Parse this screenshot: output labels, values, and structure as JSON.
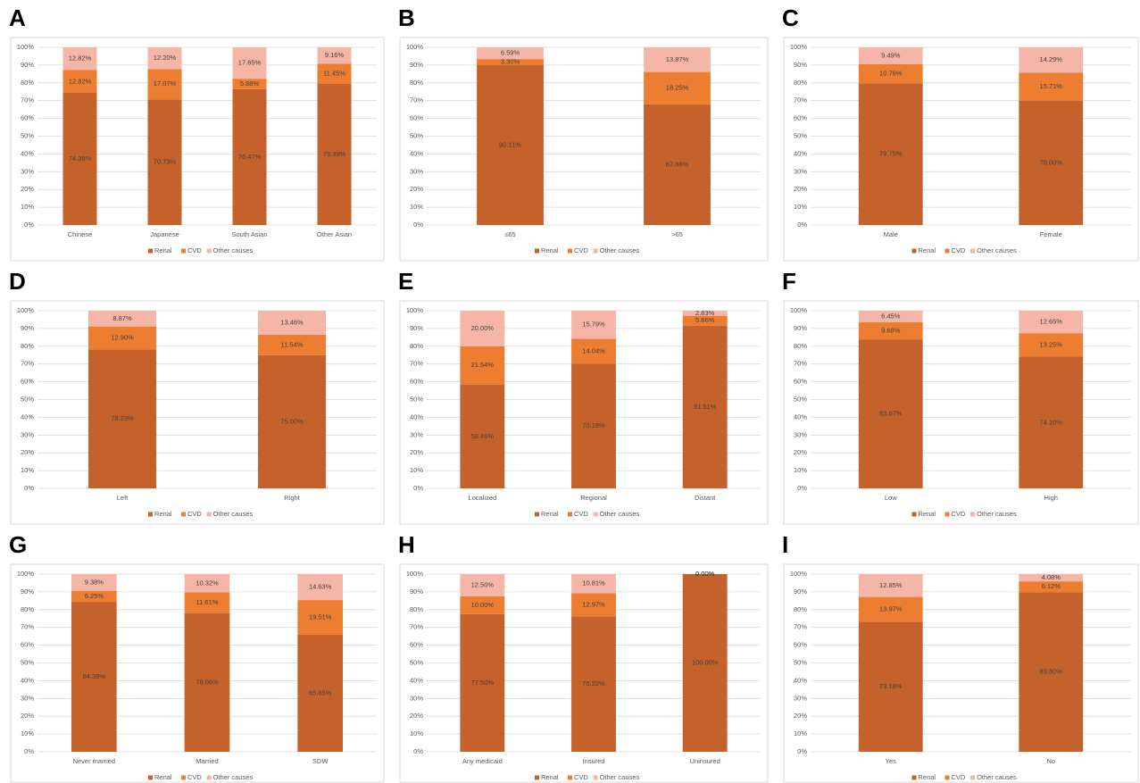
{
  "chart_data": [
    {
      "panel": "A",
      "type": "bar",
      "stacked": true,
      "categories": [
        "Chinese",
        "Japanese",
        "South Asian",
        "Other Asian"
      ],
      "series": [
        {
          "name": "Renal",
          "color": "#c5612a",
          "values": [
            74.36,
            70.73,
            76.47,
            79.39
          ],
          "value_labels": [
            "74.36%",
            "70.73%",
            "76.47%",
            "79.39%"
          ]
        },
        {
          "name": "CVD",
          "color": "#ed7d31",
          "values": [
            12.82,
            17.07,
            5.88,
            11.45
          ],
          "value_labels": [
            "12.82%",
            "17.07%",
            "5.88%",
            "11.45%"
          ]
        },
        {
          "name": "Other causes",
          "color": "#f5b6a8",
          "values": [
            12.82,
            12.2,
            17.65,
            9.16
          ],
          "value_labels": [
            "12.82%",
            "12.20%",
            "17.65%",
            "9.16%"
          ]
        }
      ],
      "ylim": [
        0,
        100
      ],
      "yticks": [
        {
          "value": 0,
          "label": "0%"
        },
        {
          "value": 10,
          "label": "10%"
        },
        {
          "value": 20,
          "label": "20%"
        },
        {
          "value": 30,
          "label": "30%"
        },
        {
          "value": 40,
          "label": "40%"
        },
        {
          "value": 50,
          "label": "50%"
        },
        {
          "value": 60,
          "label": "60%"
        },
        {
          "value": 70,
          "label": "70%"
        },
        {
          "value": 80,
          "label": "80%"
        },
        {
          "value": 90,
          "label": "90%"
        },
        {
          "value": 100,
          "label": "100%"
        }
      ],
      "grid": true
    },
    {
      "panel": "B",
      "type": "bar",
      "stacked": true,
      "categories": [
        "≤65",
        ">65"
      ],
      "series": [
        {
          "name": "Renal",
          "color": "#c5612a",
          "values": [
            90.11,
            67.88
          ],
          "value_labels": [
            "90.11%",
            "67.88%"
          ]
        },
        {
          "name": "CVD",
          "color": "#ed7d31",
          "values": [
            3.3,
            18.25
          ],
          "value_labels": [
            "3.30%",
            "18.25%"
          ]
        },
        {
          "name": "Other causes",
          "color": "#f5b6a8",
          "values": [
            6.59,
            13.87
          ],
          "value_labels": [
            "6.59%",
            "13.87%"
          ]
        }
      ],
      "ylim": [
        0,
        100
      ],
      "yticks": [
        {
          "value": 0,
          "label": "0%"
        },
        {
          "value": 10,
          "label": "10%"
        },
        {
          "value": 20,
          "label": "20%"
        },
        {
          "value": 30,
          "label": "30%"
        },
        {
          "value": 40,
          "label": "40%"
        },
        {
          "value": 50,
          "label": "50%"
        },
        {
          "value": 60,
          "label": "60%"
        },
        {
          "value": 70,
          "label": "70%"
        },
        {
          "value": 80,
          "label": "80%"
        },
        {
          "value": 90,
          "label": "90%"
        },
        {
          "value": 100,
          "label": "100%"
        }
      ],
      "grid": true
    },
    {
      "panel": "C",
      "type": "bar",
      "stacked": true,
      "categories": [
        "Male",
        "Female"
      ],
      "series": [
        {
          "name": "Renal",
          "color": "#c5612a",
          "values": [
            79.75,
            70.0
          ],
          "value_labels": [
            "79.75%",
            "70.00%"
          ]
        },
        {
          "name": "CVD",
          "color": "#ed7d31",
          "values": [
            10.76,
            15.71
          ],
          "value_labels": [
            "10.76%",
            "15.71%"
          ]
        },
        {
          "name": "Other causes",
          "color": "#f5b6a8",
          "values": [
            9.49,
            14.29
          ],
          "value_labels": [
            "9.49%",
            "14.29%"
          ]
        }
      ],
      "ylim": [
        0,
        100
      ],
      "yticks": [
        {
          "value": 0,
          "label": "0%"
        },
        {
          "value": 10,
          "label": "10%"
        },
        {
          "value": 20,
          "label": "20%"
        },
        {
          "value": 30,
          "label": "30%"
        },
        {
          "value": 40,
          "label": "40%"
        },
        {
          "value": 50,
          "label": "50%"
        },
        {
          "value": 60,
          "label": "60%"
        },
        {
          "value": 70,
          "label": "70%"
        },
        {
          "value": 80,
          "label": "80%"
        },
        {
          "value": 90,
          "label": "90%"
        },
        {
          "value": 100,
          "label": "100%"
        }
      ],
      "grid": true
    },
    {
      "panel": "D",
      "type": "bar",
      "stacked": true,
      "categories": [
        "Left",
        "Right"
      ],
      "series": [
        {
          "name": "Renal",
          "color": "#c5612a",
          "values": [
            78.23,
            75.0
          ],
          "value_labels": [
            "78.23%",
            "75.00%"
          ]
        },
        {
          "name": "CVD",
          "color": "#ed7d31",
          "values": [
            12.9,
            11.54
          ],
          "value_labels": [
            "12.90%",
            "11.54%"
          ]
        },
        {
          "name": "Other causes",
          "color": "#f5b6a8",
          "values": [
            8.87,
            13.46
          ],
          "value_labels": [
            "8.87%",
            "13.46%"
          ]
        }
      ],
      "ylim": [
        0,
        100
      ],
      "yticks": [
        {
          "value": 0,
          "label": "0%"
        },
        {
          "value": 10,
          "label": "10%"
        },
        {
          "value": 20,
          "label": "20%"
        },
        {
          "value": 30,
          "label": "30%"
        },
        {
          "value": 40,
          "label": "40%"
        },
        {
          "value": 50,
          "label": "50%"
        },
        {
          "value": 60,
          "label": "60%"
        },
        {
          "value": 70,
          "label": "70%"
        },
        {
          "value": 80,
          "label": "80%"
        },
        {
          "value": 90,
          "label": "90%"
        },
        {
          "value": 100,
          "label": "100%"
        }
      ],
      "grid": true
    },
    {
      "panel": "E",
      "type": "bar",
      "stacked": true,
      "categories": [
        "Localized",
        "Regional",
        "Distant"
      ],
      "series": [
        {
          "name": "Renal",
          "color": "#c5612a",
          "values": [
            58.46,
            70.18,
            91.51
          ],
          "value_labels": [
            "58.46%",
            "70.18%",
            "91.51%"
          ]
        },
        {
          "name": "CVD",
          "color": "#ed7d31",
          "values": [
            21.54,
            14.04,
            5.66
          ],
          "value_labels": [
            "21.54%",
            "14.04%",
            "5.66%"
          ]
        },
        {
          "name": "Other causes",
          "color": "#f5b6a8",
          "values": [
            20.0,
            15.79,
            2.83
          ],
          "value_labels": [
            "20.00%",
            "15.79%",
            "2.83%"
          ]
        }
      ],
      "ylim": [
        0,
        100
      ],
      "yticks": [
        {
          "value": 0,
          "label": "0%"
        },
        {
          "value": 10,
          "label": "10%"
        },
        {
          "value": 20,
          "label": "20%"
        },
        {
          "value": 30,
          "label": "30%"
        },
        {
          "value": 40,
          "label": "40%"
        },
        {
          "value": 50,
          "label": "50%"
        },
        {
          "value": 60,
          "label": "60%"
        },
        {
          "value": 70,
          "label": "70%"
        },
        {
          "value": 80,
          "label": "80%"
        },
        {
          "value": 90,
          "label": "90%"
        },
        {
          "value": 100,
          "label": "100%"
        }
      ],
      "grid": true
    },
    {
      "panel": "F",
      "type": "bar",
      "stacked": true,
      "categories": [
        "Low",
        "High"
      ],
      "series": [
        {
          "name": "Renal",
          "color": "#c5612a",
          "values": [
            83.87,
            74.1
          ],
          "value_labels": [
            "83.87%",
            "74.10%"
          ]
        },
        {
          "name": "CVD",
          "color": "#ed7d31",
          "values": [
            9.68,
            13.25
          ],
          "value_labels": [
            "9.68%",
            "13.25%"
          ]
        },
        {
          "name": "Other causes",
          "color": "#f5b6a8",
          "values": [
            6.45,
            12.65
          ],
          "value_labels": [
            "6.45%",
            "12.65%"
          ]
        }
      ],
      "ylim": [
        0,
        100
      ],
      "yticks": [
        {
          "value": 0,
          "label": "0%"
        },
        {
          "value": 10,
          "label": "10%"
        },
        {
          "value": 20,
          "label": "20%"
        },
        {
          "value": 30,
          "label": "30%"
        },
        {
          "value": 40,
          "label": "40%"
        },
        {
          "value": 50,
          "label": "50%"
        },
        {
          "value": 60,
          "label": "60%"
        },
        {
          "value": 70,
          "label": "70%"
        },
        {
          "value": 80,
          "label": "80%"
        },
        {
          "value": 90,
          "label": "90%"
        },
        {
          "value": 100,
          "label": "100%"
        }
      ],
      "grid": true
    },
    {
      "panel": "G",
      "type": "bar",
      "stacked": true,
      "categories": [
        "Never married",
        "Married",
        "SDW"
      ],
      "series": [
        {
          "name": "Renal",
          "color": "#c5612a",
          "values": [
            84.38,
            78.06,
            65.85
          ],
          "value_labels": [
            "84.38%",
            "78.06%",
            "65.85%"
          ]
        },
        {
          "name": "CVD",
          "color": "#ed7d31",
          "values": [
            6.25,
            11.61,
            19.51
          ],
          "value_labels": [
            "6.25%",
            "11.61%",
            "19.51%"
          ]
        },
        {
          "name": "Other causes",
          "color": "#f5b6a8",
          "values": [
            9.38,
            10.32,
            14.63
          ],
          "value_labels": [
            "9.38%",
            "10.32%",
            "14.63%"
          ]
        }
      ],
      "ylim": [
        0,
        100
      ],
      "yticks": [
        {
          "value": 0,
          "label": "0%"
        },
        {
          "value": 10,
          "label": "10%"
        },
        {
          "value": 20,
          "label": "20%"
        },
        {
          "value": 30,
          "label": "30%"
        },
        {
          "value": 40,
          "label": "40%"
        },
        {
          "value": 50,
          "label": "50%"
        },
        {
          "value": 60,
          "label": "60%"
        },
        {
          "value": 70,
          "label": "70%"
        },
        {
          "value": 80,
          "label": "80%"
        },
        {
          "value": 90,
          "label": "90%"
        },
        {
          "value": 100,
          "label": "100%"
        }
      ],
      "grid": true
    },
    {
      "panel": "H",
      "type": "bar",
      "stacked": true,
      "categories": [
        "Any medicaid",
        "Insured",
        "Uninsured"
      ],
      "series": [
        {
          "name": "Renal",
          "color": "#c5612a",
          "values": [
            77.5,
            76.22,
            100.0
          ],
          "value_labels": [
            "77.50%",
            "76.22%",
            "100.00%"
          ]
        },
        {
          "name": "CVD",
          "color": "#ed7d31",
          "values": [
            10.0,
            12.97,
            0.0
          ],
          "value_labels": [
            "10.00%",
            "12.97%",
            "0.00%"
          ]
        },
        {
          "name": "Other causes",
          "color": "#f5b6a8",
          "values": [
            12.5,
            10.81,
            0.0
          ],
          "value_labels": [
            "12.50%",
            "10.81%",
            "0.00%"
          ]
        }
      ],
      "ylim": [
        0,
        100
      ],
      "yticks": [
        {
          "value": 0,
          "label": "0%"
        },
        {
          "value": 10,
          "label": "10%"
        },
        {
          "value": 20,
          "label": "20%"
        },
        {
          "value": 30,
          "label": "30%"
        },
        {
          "value": 40,
          "label": "40%"
        },
        {
          "value": 50,
          "label": "50%"
        },
        {
          "value": 60,
          "label": "60%"
        },
        {
          "value": 70,
          "label": "70%"
        },
        {
          "value": 80,
          "label": "80%"
        },
        {
          "value": 90,
          "label": "90%"
        },
        {
          "value": 100,
          "label": "100%"
        }
      ],
      "grid": true
    },
    {
      "panel": "I",
      "type": "bar",
      "stacked": true,
      "categories": [
        "Yes",
        "No"
      ],
      "series": [
        {
          "name": "Renal",
          "color": "#c5612a",
          "values": [
            73.18,
            89.8
          ],
          "value_labels": [
            "73.18%",
            "89.80%"
          ]
        },
        {
          "name": "CVD",
          "color": "#ed7d31",
          "values": [
            13.97,
            6.12
          ],
          "value_labels": [
            "13.97%",
            "6.12%"
          ]
        },
        {
          "name": "Other causes",
          "color": "#f5b6a8",
          "values": [
            12.85,
            4.08
          ],
          "value_labels": [
            "12.85%",
            "4.08%"
          ]
        }
      ],
      "ylim": [
        0,
        100
      ],
      "yticks": [
        {
          "value": 0,
          "label": "0%"
        },
        {
          "value": 10,
          "label": "10%"
        },
        {
          "value": 20,
          "label": "20%"
        },
        {
          "value": 30,
          "label": "30%"
        },
        {
          "value": 40,
          "label": "40%"
        },
        {
          "value": 50,
          "label": "50%"
        },
        {
          "value": 60,
          "label": "60%"
        },
        {
          "value": 70,
          "label": "70%"
        },
        {
          "value": 80,
          "label": "80%"
        },
        {
          "value": 90,
          "label": "90%"
        },
        {
          "value": 100,
          "label": "100%"
        }
      ],
      "grid": true
    }
  ]
}
